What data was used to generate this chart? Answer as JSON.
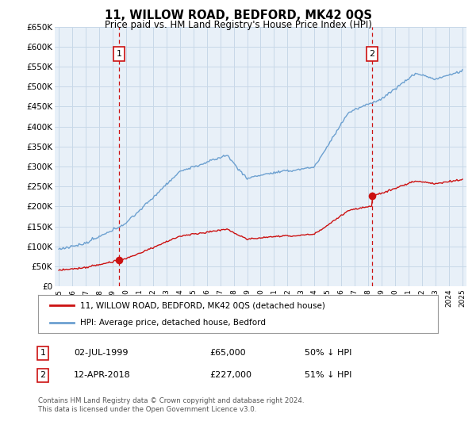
{
  "title": "11, WILLOW ROAD, BEDFORD, MK42 0QS",
  "subtitle": "Price paid vs. HM Land Registry's House Price Index (HPI)",
  "legend_line1": "11, WILLOW ROAD, BEDFORD, MK42 0QS (detached house)",
  "legend_line2": "HPI: Average price, detached house, Bedford",
  "sale1_date": "02-JUL-1999",
  "sale1_price": 65000,
  "sale1_label": "50% ↓ HPI",
  "sale2_date": "12-APR-2018",
  "sale2_price": 227000,
  "sale2_label": "51% ↓ HPI",
  "footer": "Contains HM Land Registry data © Crown copyright and database right 2024.\nThis data is licensed under the Open Government Licence v3.0.",
  "sale1_x": 1999.5,
  "sale2_x": 2018.28,
  "hpi_color": "#6ca0d0",
  "price_color": "#cc1111",
  "dashed_color": "#cc1111",
  "grid_color": "#c8d8e8",
  "plot_bg_color": "#e8f0f8",
  "background_color": "#ffffff",
  "ylim": [
    0,
    650000
  ],
  "xlim": [
    1994.7,
    2025.3
  ],
  "yticks": [
    0,
    50000,
    100000,
    150000,
    200000,
    250000,
    300000,
    350000,
    400000,
    450000,
    500000,
    550000,
    600000,
    650000
  ],
  "ytick_labels": [
    "£0",
    "£50K",
    "£100K",
    "£150K",
    "£200K",
    "£250K",
    "£300K",
    "£350K",
    "£400K",
    "£450K",
    "£500K",
    "£550K",
    "£600K",
    "£650K"
  ]
}
